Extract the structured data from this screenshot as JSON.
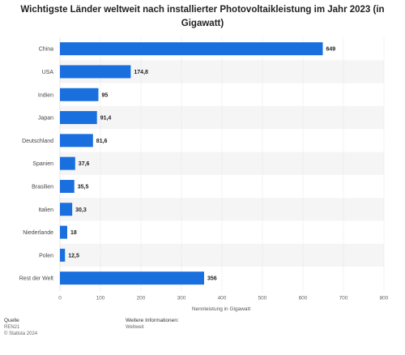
{
  "chart_data": {
    "type": "bar",
    "orientation": "horizontal",
    "title": "Wichtigste Länder weltweit nach installierter Photovoltaikleistung im Jahr 2023 (in Gigawatt)",
    "categories": [
      "China",
      "USA",
      "Indien",
      "Japan",
      "Deutschland",
      "Spanien",
      "Brasilien",
      "Italien",
      "Niederlande",
      "Polen",
      "Rest der Welt"
    ],
    "values": [
      649,
      174.8,
      95,
      91.4,
      81.6,
      37.6,
      35.5,
      30.3,
      18,
      12.5,
      356
    ],
    "value_labels": [
      "649",
      "174,8",
      "95",
      "91,4",
      "81,6",
      "37,6",
      "35,5",
      "30,3",
      "18",
      "12,5",
      "356"
    ],
    "xlabel": "Nennleistung in Gigawatt",
    "ylabel": "",
    "xlim": [
      0,
      800
    ],
    "xticks": [
      0,
      100,
      200,
      300,
      400,
      500,
      600,
      700,
      800
    ],
    "grid": true,
    "bar_color": "#1a6fdf"
  },
  "footer": {
    "source_heading": "Quelle",
    "source_line1": "REN21",
    "source_line2": "© Statista 2024",
    "info_heading": "Weitere Informationen:",
    "info_value": "Weltweit"
  }
}
